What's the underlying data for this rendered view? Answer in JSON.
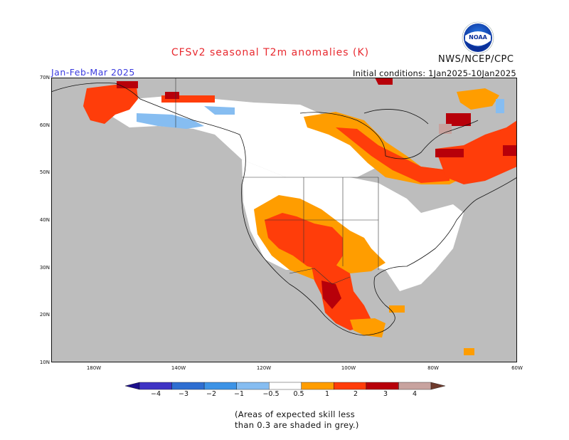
{
  "title": "CFSv2 seasonal T2m anomalies (K)",
  "period": "Jan-Feb-Mar 2025",
  "agency": "NWS/NCEP/CPC",
  "initial_conditions": "Initial conditions: 1Jan2025-10Jan2025",
  "logo_text": "NOAA",
  "map": {
    "projection": "lat-lon",
    "lon_range": [
      -190,
      -60
    ],
    "lat_range": [
      10,
      70
    ],
    "lat_labels": [
      "70N",
      "60N",
      "50N",
      "40N",
      "30N",
      "20N",
      "10N"
    ],
    "lon_labels": [
      "180W",
      "140W",
      "120W",
      "100W",
      "80W",
      "60W"
    ],
    "regions": [
      {
        "name": "alaska-west",
        "value": 1.5
      },
      {
        "name": "alaska-south-coast",
        "value": -0.7
      },
      {
        "name": "yukon-pacific-coast",
        "value": 0
      },
      {
        "name": "canada-prairies",
        "value": 0.7
      },
      {
        "name": "great-lakes-quebec",
        "value": 1.0
      },
      {
        "name": "eastern-canada-maritimes",
        "value": 1.5
      },
      {
        "name": "labrador",
        "value": 2.0
      },
      {
        "name": "hudson-bay-islands",
        "value": 2.5
      },
      {
        "name": "us-southwest",
        "value": 1.5
      },
      {
        "name": "us-south-central",
        "value": 0.7
      },
      {
        "name": "northern-mexico",
        "value": 1.5
      },
      {
        "name": "central-mexico",
        "value": 2.5
      },
      {
        "name": "us-northern-plains",
        "value": 0
      }
    ]
  },
  "colorbar": {
    "labels": [
      "−4",
      "−3",
      "−2",
      "−1",
      "−0.5",
      "0.5",
      "1",
      "2",
      "3",
      "4"
    ],
    "colors": [
      "#1b0f8c",
      "#3f33c4",
      "#2e6ed1",
      "#3d93e6",
      "#86bdf1",
      "#ffffff",
      "#ff9d00",
      "#ff3d0a",
      "#b7000a",
      "#c8a39f",
      "#6e3a2c"
    ],
    "grey": "#bdbdbd"
  },
  "note": {
    "line1": "(Areas of expected skill less",
    "line2": "than 0.3 are shaded in grey.)"
  }
}
